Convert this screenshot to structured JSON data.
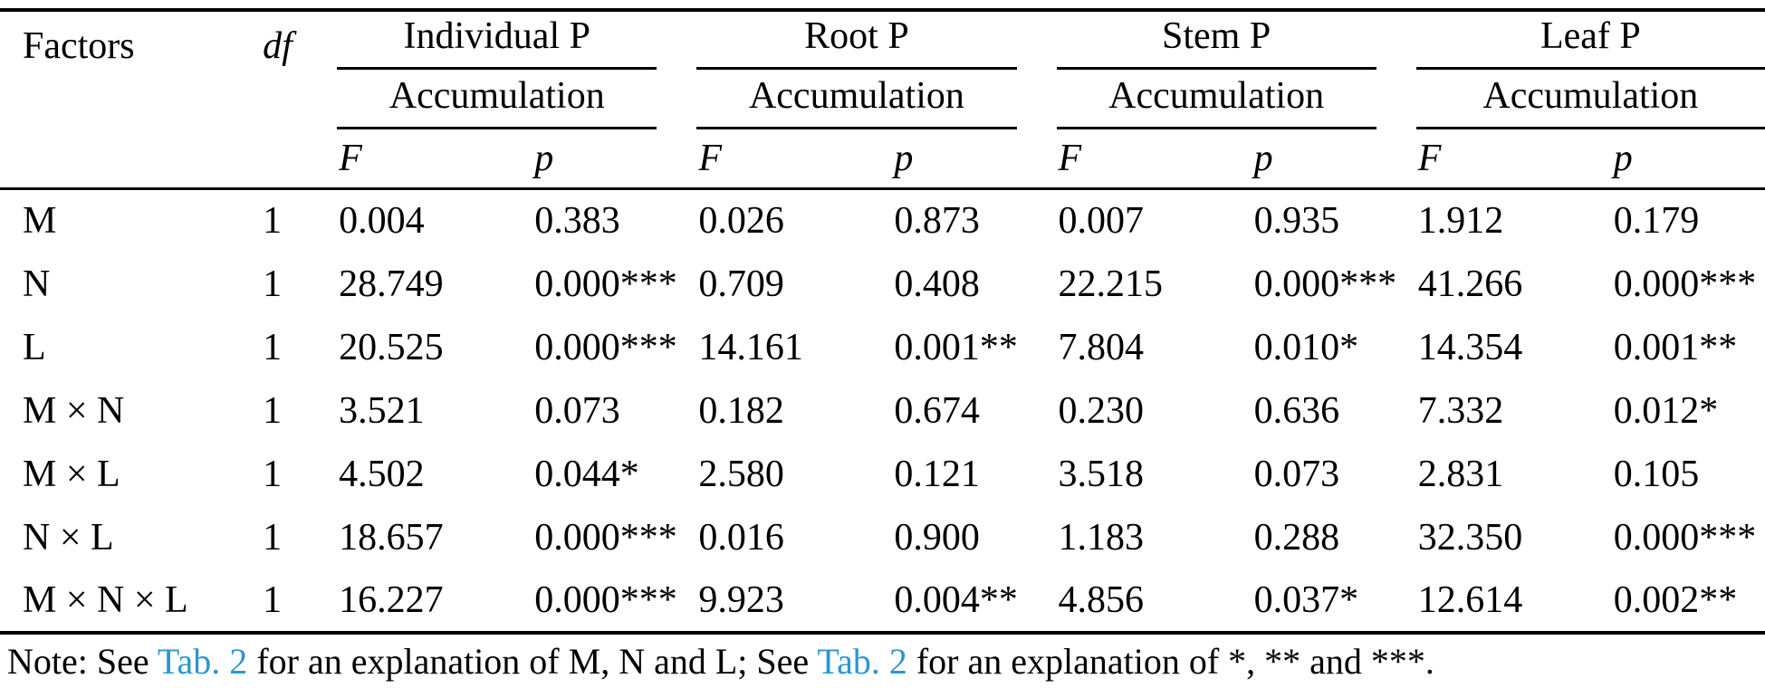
{
  "table": {
    "col_factors": "Factors",
    "col_df": "df",
    "groups": [
      {
        "title": "Individual P",
        "subtitle": "Accumulation"
      },
      {
        "title": "Root P",
        "subtitle": "Accumulation"
      },
      {
        "title": "Stem P",
        "subtitle": "Accumulation"
      },
      {
        "title": "Leaf P",
        "subtitle": "Accumulation"
      }
    ],
    "stat_headers": {
      "f": "F",
      "p": "p"
    },
    "rows": [
      {
        "factor": "M",
        "df": "1",
        "cells": [
          "0.004",
          "0.383",
          "0.026",
          "0.873",
          "0.007",
          "0.935",
          "1.912",
          "0.179"
        ]
      },
      {
        "factor": "N",
        "df": "1",
        "cells": [
          "28.749",
          "0.000***",
          "0.709",
          "0.408",
          "22.215",
          "0.000***",
          "41.266",
          "0.000***"
        ]
      },
      {
        "factor": "L",
        "df": "1",
        "cells": [
          "20.525",
          "0.000***",
          "14.161",
          "0.001**",
          "7.804",
          "0.010*",
          "14.354",
          "0.001**"
        ]
      },
      {
        "factor": "M × N",
        "df": "1",
        "cells": [
          "3.521",
          "0.073",
          "0.182",
          "0.674",
          "0.230",
          "0.636",
          "7.332",
          "0.012*"
        ]
      },
      {
        "factor": "M × L",
        "df": "1",
        "cells": [
          "4.502",
          "0.044*",
          "2.580",
          "0.121",
          "3.518",
          "0.073",
          "2.831",
          "0.105"
        ]
      },
      {
        "factor": "N × L",
        "df": "1",
        "cells": [
          "18.657",
          "0.000***",
          "0.016",
          "0.900",
          "1.183",
          "0.288",
          "32.350",
          "0.000***"
        ]
      },
      {
        "factor": "M × N × L",
        "df": "1",
        "cells": [
          "16.227",
          "0.000***",
          "9.923",
          "0.004**",
          "4.856",
          "0.037*",
          "12.614",
          "0.002**"
        ]
      }
    ],
    "note": {
      "part1": "Note: See ",
      "link1": "Tab. 2",
      "part2": " for an explanation of M, N and L; See ",
      "link2": "Tab. 2",
      "part3": " for an explanation of *, ** and ***."
    },
    "link_color": "#2b97cf"
  }
}
